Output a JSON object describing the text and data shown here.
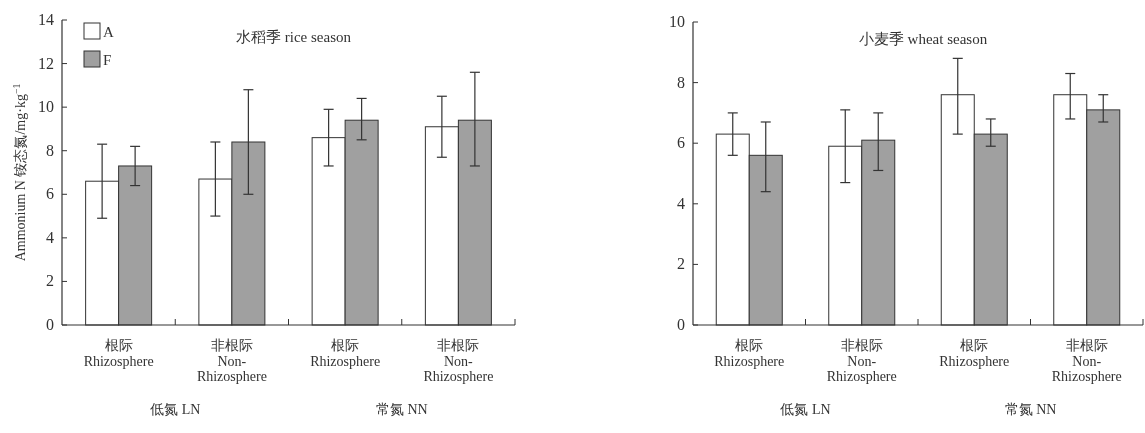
{
  "chart_data": [
    {
      "type": "bar",
      "title": "水稻季 rice season",
      "ylabel": "Ammonium N 铵态氮/mg·kg$^{−1}$",
      "categories": [
        "根际\nRhizosphere",
        "非根际\nNon-\nRhizosphere",
        "根际\nRhizosphere",
        "非根际\nNon-\nRhizosphere"
      ],
      "ylim": [
        0,
        14
      ],
      "yticks": [
        0,
        2,
        4,
        6,
        8,
        10,
        12,
        14
      ],
      "legend": "top left",
      "grid": false,
      "annotations": [
        "低氮 LN",
        "常氮 NN"
      ],
      "series": [
        {
          "name": "A",
          "color": "#ffffff",
          "values": [
            6.6,
            6.7,
            8.6,
            9.1
          ],
          "errors": [
            [
              4.9,
              8.3
            ],
            [
              5.0,
              8.4
            ],
            [
              7.3,
              9.9
            ],
            [
              7.7,
              10.5
            ]
          ]
        },
        {
          "name": "F",
          "color": "#a0a0a0",
          "values": [
            7.3,
            8.4,
            9.4,
            9.4
          ],
          "errors": [
            [
              6.4,
              8.2
            ],
            [
              6.0,
              10.8
            ],
            [
              8.5,
              10.4
            ],
            [
              7.3,
              11.6
            ]
          ]
        }
      ]
    },
    {
      "type": "bar",
      "title": "小麦季 wheat season",
      "categories": [
        "根际\nRhizosphere",
        "非根际\nNon-\nRhizosphere",
        "根际\nRhizosphere",
        "非根际\nNon-\nRhizosphere"
      ],
      "ylim": [
        0,
        10
      ],
      "yticks": [
        0,
        2,
        4,
        6,
        8,
        10
      ],
      "legend": false,
      "grid": false,
      "annotations": [
        "低氮 LN",
        "常氮 NN"
      ],
      "series": [
        {
          "color": "#ffffff",
          "values": [
            6.3,
            5.9,
            7.6,
            7.6
          ],
          "errors": [
            [
              5.6,
              7.0
            ],
            [
              4.7,
              7.1
            ],
            [
              6.3,
              8.8
            ],
            [
              6.8,
              8.3
            ]
          ]
        },
        {
          "color": "#a0a0a0",
          "values": [
            5.6,
            6.1,
            6.3,
            7.1
          ],
          "errors": [
            [
              4.4,
              6.7
            ],
            [
              5.1,
              7.0
            ],
            [
              5.9,
              6.8
            ],
            [
              6.7,
              7.6
            ]
          ]
        }
      ]
    }
  ]
}
